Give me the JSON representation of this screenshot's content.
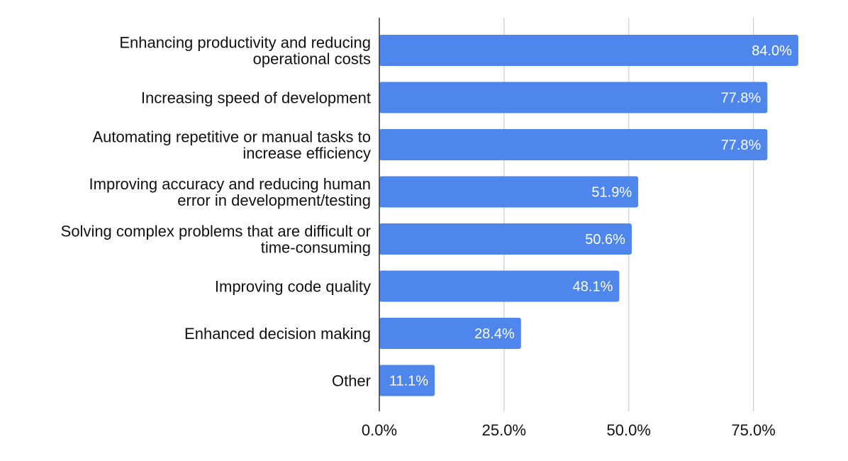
{
  "chart_data": {
    "type": "bar",
    "orientation": "horizontal",
    "title": "",
    "xlabel": "",
    "ylabel": "",
    "categories": [
      [
        "Enhancing productivity and reducing",
        "operational costs"
      ],
      [
        "Increasing speed of development"
      ],
      [
        "Automating repetitive or manual tasks to",
        "increase efficiency"
      ],
      [
        "Improving accuracy and reducing human",
        "error in development/testing"
      ],
      [
        "Solving complex problems that are difficult or",
        "time-consuming"
      ],
      [
        "Improving code quality"
      ],
      [
        "Enhanced decision making"
      ],
      [
        "Other"
      ]
    ],
    "values": [
      84.0,
      77.8,
      77.8,
      51.9,
      50.6,
      48.1,
      28.4,
      11.1
    ],
    "data_labels": [
      "84.0%",
      "77.8%",
      "77.8%",
      "51.9%",
      "50.6%",
      "48.1%",
      "28.4%",
      "11.1%"
    ],
    "xlim": [
      0,
      90
    ],
    "ticks": [
      0,
      25,
      50,
      75
    ],
    "tick_labels": [
      "0.0%",
      "25.0%",
      "50.0%",
      "75.0%"
    ],
    "grid": true,
    "legend": "none",
    "colors": {
      "bar": "#4F86EC",
      "grid": "#CCCCCC",
      "axis": "#333333",
      "label_text": "#111111",
      "data_label_text": "#FFFFFF"
    }
  }
}
